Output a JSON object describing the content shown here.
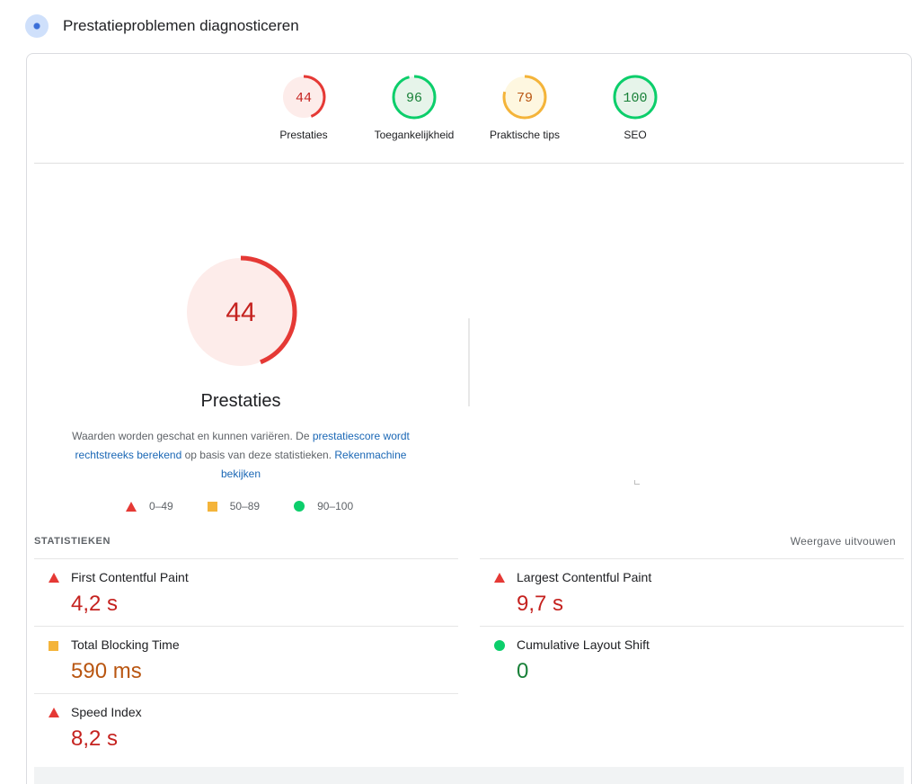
{
  "header": {
    "title": "Prestatieproblemen diagnosticeren",
    "icon": "lighthouse-icon"
  },
  "categories": [
    {
      "label": "Prestaties",
      "score": 44,
      "color": "#e53935",
      "bg": "#fdecea"
    },
    {
      "label": "Toegankelijkheid",
      "score": 96,
      "color": "#0cce6b",
      "bg": "#e6f4ea"
    },
    {
      "label": "Praktische tips",
      "score": 79,
      "color": "#f4b43a",
      "bg": "#fef7e0"
    },
    {
      "label": "SEO",
      "score": 100,
      "color": "#0cce6b",
      "bg": "#e6f4ea"
    }
  ],
  "main": {
    "score": 44,
    "title": "Prestaties",
    "desc_part1": "Waarden worden geschat en kunnen variëren. De ",
    "desc_link1": "prestatiescore wordt rechtstreeks berekend",
    "desc_part2": " op basis van deze statistieken. ",
    "desc_link2": "Rekenmachine bekijken"
  },
  "legend": [
    {
      "shape": "triangle",
      "range": "0–49"
    },
    {
      "shape": "square",
      "range": "50–89"
    },
    {
      "shape": "circle",
      "range": "90–100"
    }
  ],
  "stats": {
    "title": "STATISTIEKEN",
    "expand_label": "Weergave uitvouwen",
    "metrics": [
      {
        "name": "First Contentful Paint",
        "value": "4,2 s",
        "status": "red"
      },
      {
        "name": "Largest Contentful Paint",
        "value": "9,7 s",
        "status": "red"
      },
      {
        "name": "Total Blocking Time",
        "value": "590 ms",
        "status": "orange"
      },
      {
        "name": "Cumulative Layout Shift",
        "value": "0",
        "status": "green"
      },
      {
        "name": "Speed Index",
        "value": "8,2 s",
        "status": "red"
      }
    ]
  }
}
